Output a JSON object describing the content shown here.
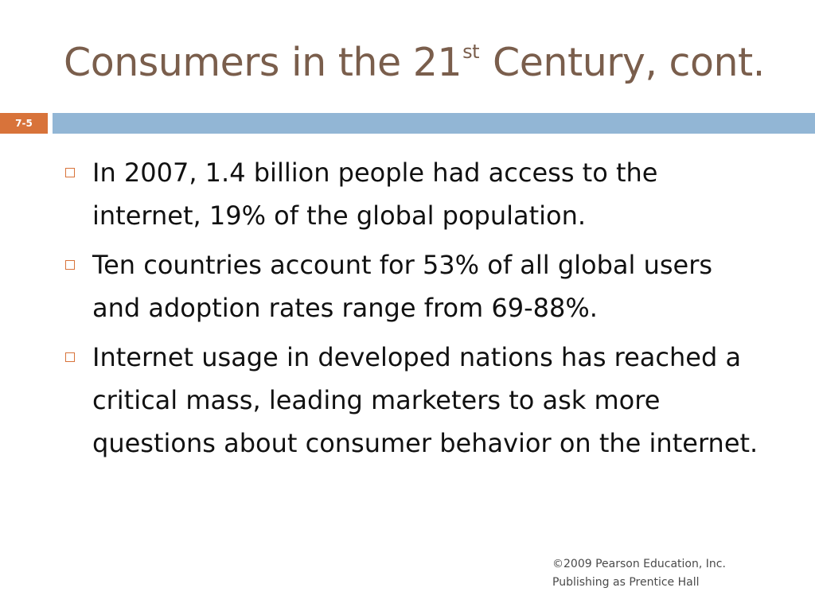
{
  "slide": {
    "title_main": "Consumers in the 21",
    "title_sup": "st",
    "title_rest": " Century, cont.",
    "number": "7-5"
  },
  "bullets": [
    "In 2007, 1.4 billion people had access to the internet, 19% of the global population.",
    "Ten countries account for 53% of all global users and adoption rates range from 69-88%.",
    "Internet usage in developed nations has reached a critical mass, leading marketers to ask more questions about consumer behavior on the internet."
  ],
  "footer": {
    "line1": "©2009 Pearson Education, Inc.",
    "line2": "Publishing as Prentice Hall"
  },
  "colors": {
    "title": "#7a5e4c",
    "accent": "#d8733a",
    "bar": "#92b6d5"
  }
}
